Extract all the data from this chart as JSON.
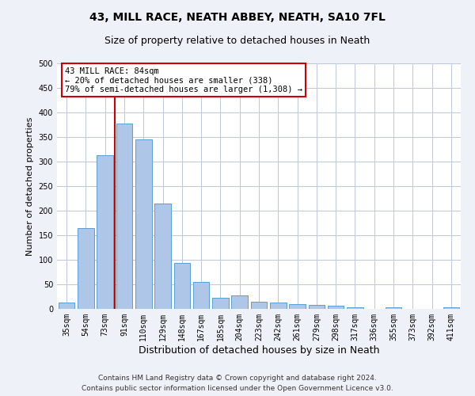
{
  "title1": "43, MILL RACE, NEATH ABBEY, NEATH, SA10 7FL",
  "title2": "Size of property relative to detached houses in Neath",
  "xlabel": "Distribution of detached houses by size in Neath",
  "ylabel": "Number of detached properties",
  "categories": [
    "35sqm",
    "54sqm",
    "73sqm",
    "91sqm",
    "110sqm",
    "129sqm",
    "148sqm",
    "167sqm",
    "185sqm",
    "204sqm",
    "223sqm",
    "242sqm",
    "261sqm",
    "279sqm",
    "298sqm",
    "317sqm",
    "336sqm",
    "355sqm",
    "373sqm",
    "392sqm",
    "411sqm"
  ],
  "values": [
    13,
    165,
    313,
    377,
    345,
    214,
    93,
    55,
    23,
    27,
    14,
    13,
    9,
    8,
    6,
    3,
    0,
    3,
    0,
    0,
    3
  ],
  "bar_color": "#aec6e8",
  "bar_edge_color": "#5a9fd4",
  "vline_color": "#cc0000",
  "annotation_line1": "43 MILL RACE: 84sqm",
  "annotation_line2": "← 20% of detached houses are smaller (338)",
  "annotation_line3": "79% of semi-detached houses are larger (1,308) →",
  "annotation_box_color": "#ffffff",
  "annotation_box_edge": "#cc0000",
  "ylim": [
    0,
    500
  ],
  "yticks": [
    0,
    50,
    100,
    150,
    200,
    250,
    300,
    350,
    400,
    450,
    500
  ],
  "footer1": "Contains HM Land Registry data © Crown copyright and database right 2024.",
  "footer2": "Contains public sector information licensed under the Open Government Licence v3.0.",
  "title1_fontsize": 10,
  "title2_fontsize": 9,
  "xlabel_fontsize": 9,
  "ylabel_fontsize": 8,
  "tick_fontsize": 7,
  "annotation_fontsize": 7.5,
  "footer_fontsize": 6.5,
  "background_color": "#eef2f8",
  "plot_bg_color": "#ffffff",
  "grid_color": "#c0c8d8"
}
